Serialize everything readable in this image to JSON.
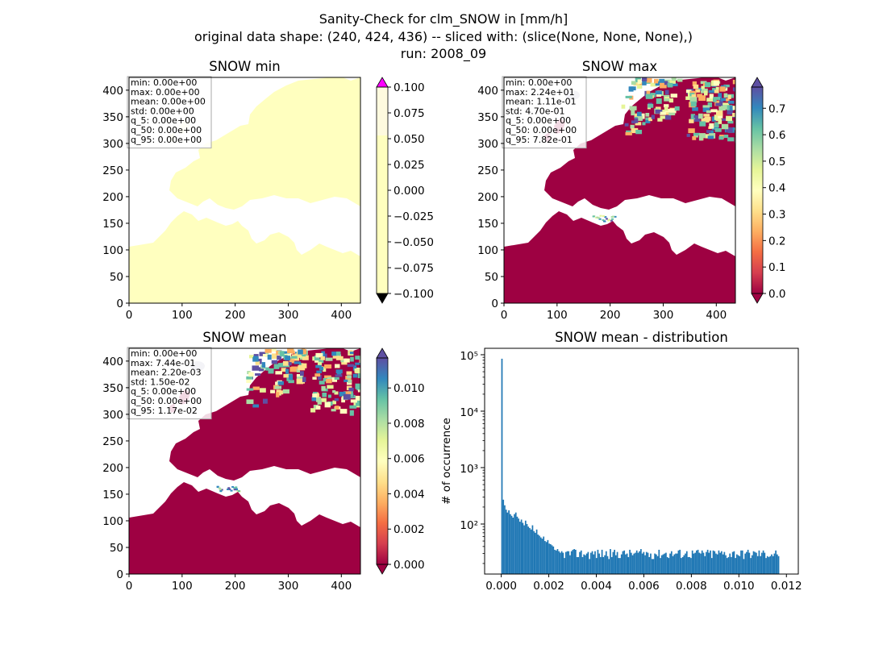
{
  "figure": {
    "title_lines": [
      "Sanity-Check for clm_SNOW in [mm/h]",
      "original data shape: (240, 424, 436) -- sliced with: (slice(None, None, None),)",
      "run: 2008_09"
    ]
  },
  "colors": {
    "nodata": "#ffffff",
    "hist_bar": "#1f77b4",
    "over_min_panel": "#ff00ff",
    "under_min_panel": "#000000",
    "spectral": [
      "#9e0142",
      "#d53e4f",
      "#f46d43",
      "#fdae61",
      "#fee08b",
      "#ffffbf",
      "#e6f598",
      "#abdda4",
      "#66c2a5",
      "#3288bd",
      "#5e4fa2"
    ]
  },
  "chart_data": [
    {
      "type": "heatmap",
      "title": "SNOW min",
      "xlim": [
        0,
        436
      ],
      "ylim": [
        0,
        424
      ],
      "x_ticks": [
        0,
        100,
        200,
        300,
        400
      ],
      "y_ticks": [
        0,
        50,
        100,
        150,
        200,
        250,
        300,
        350,
        400
      ],
      "colorbar": {
        "vmin": -0.1,
        "vmax": 0.1,
        "ticks": [
          "0.100",
          "0.075",
          "0.050",
          "0.025",
          "0.000",
          "−0.025",
          "−0.050",
          "−0.075",
          "−0.100"
        ],
        "extend": "both"
      },
      "stats": [
        "min: 0.00e+00",
        "max: 0.00e+00",
        "mean: 0.00e+00",
        "std: 0.00e+00",
        "q_5: 0.00e+00",
        "q_50: 0.00e+00",
        "q_95: 0.00e+00"
      ],
      "field": "uniform"
    },
    {
      "type": "heatmap",
      "title": "SNOW max",
      "xlim": [
        0,
        436
      ],
      "ylim": [
        0,
        424
      ],
      "x_ticks": [
        0,
        100,
        200,
        300,
        400
      ],
      "y_ticks": [
        0,
        50,
        100,
        150,
        200,
        250,
        300,
        350,
        400
      ],
      "colorbar": {
        "vmin": 0.0,
        "vmax": 0.78,
        "ticks": [
          "0.7",
          "0.6",
          "0.5",
          "0.4",
          "0.3",
          "0.2",
          "0.1",
          "0.0"
        ],
        "extend": "both"
      },
      "stats": [
        "min: 0.00e+00",
        "max: 2.24e+01",
        "mean: 1.11e-01",
        "std: 4.70e-01",
        "q_5: 0.00e+00",
        "q_50: 0.00e+00",
        "q_95: 7.82e-01"
      ],
      "field": "snow"
    },
    {
      "type": "heatmap",
      "title": "SNOW mean",
      "xlim": [
        0,
        436
      ],
      "ylim": [
        0,
        424
      ],
      "x_ticks": [
        0,
        100,
        200,
        300,
        400
      ],
      "y_ticks": [
        0,
        50,
        100,
        150,
        200,
        250,
        300,
        350,
        400
      ],
      "colorbar": {
        "vmin": 0.0,
        "vmax": 0.0117,
        "ticks": [
          "0.010",
          "0.008",
          "0.006",
          "0.004",
          "0.002",
          "0.000"
        ],
        "extend": "both"
      },
      "stats": [
        "min: 0.00e+00",
        "max: 7.44e-01",
        "mean: 2.20e-03",
        "std: 1.50e-02",
        "q_5: 0.00e+00",
        "q_50: 0.00e+00",
        "q_95: 1.17e-02"
      ],
      "field": "snow"
    },
    {
      "type": "bar",
      "title": "SNOW mean - distribution",
      "ylabel": "# of occurrence",
      "xlabel": "",
      "yscale": "log",
      "xlim": [
        -0.0007,
        0.0125
      ],
      "ylim": [
        13,
        130000
      ],
      "x_ticks": [
        "0.000",
        "0.002",
        "0.004",
        "0.006",
        "0.008",
        "0.010",
        "0.012"
      ],
      "y_ticks": [
        "10²",
        "10³",
        "10⁴",
        "10⁵"
      ],
      "bin_range": [
        0.0,
        0.0117
      ],
      "n_bins": 200,
      "counts_head": [
        85000,
        270,
        215,
        180,
        160,
        175,
        150,
        140,
        130,
        150,
        160,
        135,
        125,
        110,
        120,
        105,
        95,
        115,
        100,
        90,
        85,
        80,
        95,
        75,
        70,
        80,
        65,
        62,
        58,
        55,
        60,
        50,
        48,
        52,
        45,
        44,
        42,
        40
      ],
      "counts_tail_level": 30
    }
  ]
}
